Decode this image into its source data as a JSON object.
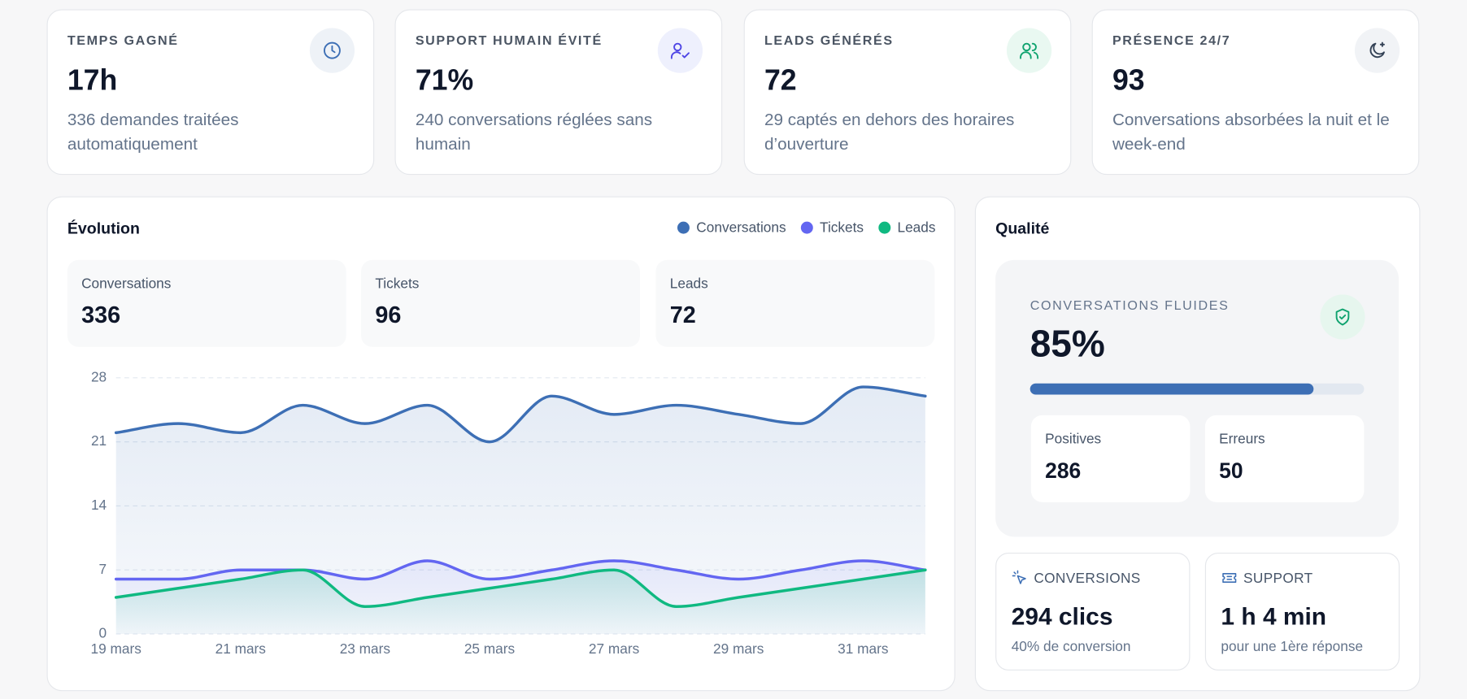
{
  "kpis": [
    {
      "label": "TEMPS GAGNÉ",
      "value": "17h",
      "description": "336 demandes traitées automatiquement"
    },
    {
      "label": "SUPPORT HUMAIN ÉVITÉ",
      "value": "71%",
      "description": "240 conversations réglées sans humain"
    },
    {
      "label": "LEADS GÉNÉRÉS",
      "value": 72,
      "description": "29 captés en dehors des horaires d’ouverture"
    },
    {
      "label": "PRÉSENCE 24/7",
      "value": 93,
      "description": "Conversations absorbées la nuit et le week-end"
    }
  ],
  "evolution": {
    "title": "Évolution",
    "totals": [
      {
        "label": "Conversations",
        "value": 336
      },
      {
        "label": "Tickets",
        "value": 96
      },
      {
        "label": "Leads",
        "value": 72
      }
    ]
  },
  "chart_data": {
    "type": "line",
    "categories": [
      "19 mars",
      null,
      "21 mars",
      null,
      "23 mars",
      null,
      "25 mars",
      null,
      "27 mars",
      null,
      "29 mars",
      null,
      "31 mars",
      null
    ],
    "series": [
      {
        "name": "Conversations",
        "color": "#3d6fb5",
        "values": [
          22,
          23,
          22,
          25,
          23,
          25,
          21,
          26,
          24,
          25,
          24,
          23,
          27,
          26
        ]
      },
      {
        "name": "Tickets",
        "color": "#6366f1",
        "values": [
          6,
          6,
          7,
          7,
          6,
          8,
          6,
          7,
          8,
          7,
          6,
          7,
          8,
          7
        ]
      },
      {
        "name": "Leads",
        "color": "#10b981",
        "values": [
          4,
          5,
          6,
          7,
          3,
          4,
          5,
          6,
          7,
          3,
          4,
          5,
          6,
          7
        ]
      }
    ],
    "ylim": [
      0,
      28
    ],
    "yticks": [
      0,
      7,
      14,
      21,
      28
    ],
    "grid": true,
    "legend": "top-right"
  },
  "quality": {
    "title": "Qualité",
    "fluid": {
      "label": "CONVERSATIONS FLUIDES",
      "value": {
        "value": 85,
        "label": "85%"
      }
    },
    "stats": [
      {
        "label": "Positives",
        "value": 286
      },
      {
        "label": "Erreurs",
        "value": 50
      }
    ],
    "cards": [
      {
        "label": "CONVERSIONS",
        "value": "294 clics",
        "note": "40% de conversion"
      },
      {
        "label": "SUPPORT",
        "value": "1 h 4 min",
        "note": "pour une 1ère réponse"
      }
    ]
  }
}
